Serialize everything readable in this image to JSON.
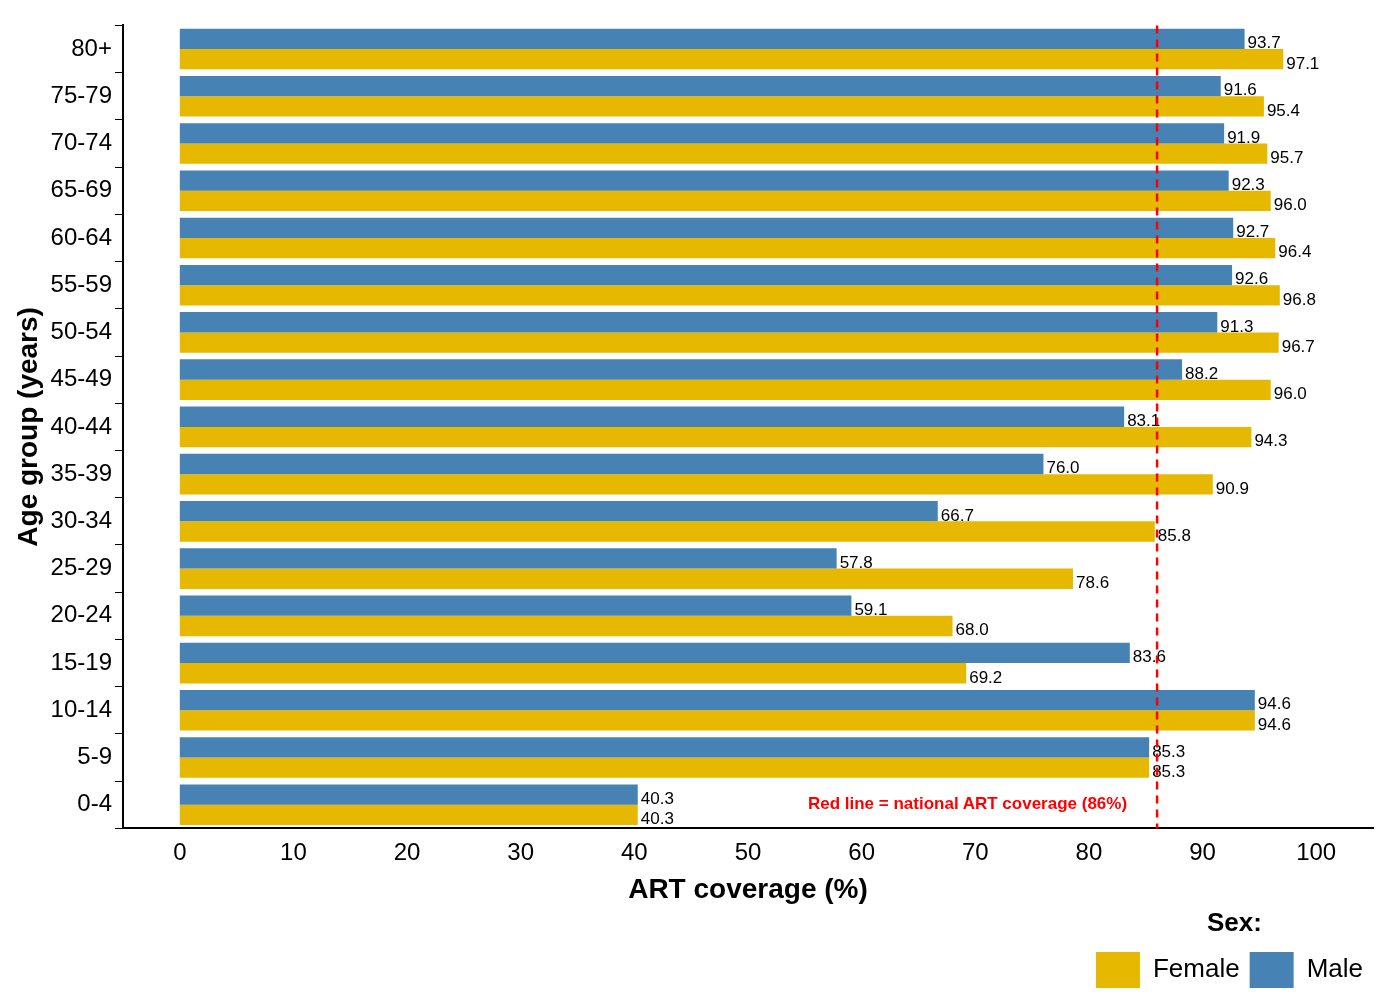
{
  "chart_data": {
    "type": "bar",
    "orientation": "horizontal",
    "xlabel": "ART coverage (%)",
    "ylabel": "Age group (years)",
    "legend_title": "Sex:",
    "legend": "bottom right",
    "categories": [
      "80+",
      "75-79",
      "70-74",
      "65-69",
      "60-64",
      "55-59",
      "50-54",
      "45-49",
      "40-44",
      "35-39",
      "30-34",
      "25-29",
      "20-24",
      "15-19",
      "10-14",
      "5-9",
      "0-4"
    ],
    "series": [
      {
        "name": "Male",
        "color": "#4682b4",
        "values": [
          93.7,
          91.6,
          91.9,
          92.3,
          92.7,
          92.6,
          91.3,
          88.2,
          83.1,
          76.0,
          66.7,
          57.8,
          59.1,
          83.6,
          94.6,
          85.3,
          40.3
        ],
        "value_labels": [
          "93.7",
          "91.6",
          "91.9",
          "92.3",
          "92.7",
          "92.6",
          "91.3",
          "88.2",
          "83.1",
          "76.0",
          "66.7",
          "57.8",
          "59.1",
          "83.6",
          "94.6",
          "85.3",
          "40.3"
        ]
      },
      {
        "name": "Female",
        "color": "#e6b800",
        "values": [
          97.1,
          95.4,
          95.7,
          96.0,
          96.4,
          96.8,
          96.7,
          96.0,
          94.3,
          90.9,
          85.8,
          78.6,
          68.0,
          69.2,
          94.6,
          85.3,
          40.3
        ],
        "value_labels": [
          "97.1",
          "95.4",
          "95.7",
          "96.0",
          "96.4",
          "96.8",
          "96.7",
          "96.0",
          "94.3",
          "90.9",
          "85.8",
          "78.6",
          "68.0",
          "69.2",
          "94.6",
          "85.3",
          "40.3"
        ]
      }
    ],
    "xlim": [
      -5,
      105
    ],
    "xticks": [
      0,
      10,
      20,
      30,
      40,
      50,
      60,
      70,
      80,
      90,
      100
    ],
    "grid": false,
    "ref_lines": [
      {
        "axis": "x",
        "value": 86,
        "label": "Red line = national ART coverage (86%)",
        "color": "#ff0000",
        "line_style": "dashed"
      }
    ]
  }
}
